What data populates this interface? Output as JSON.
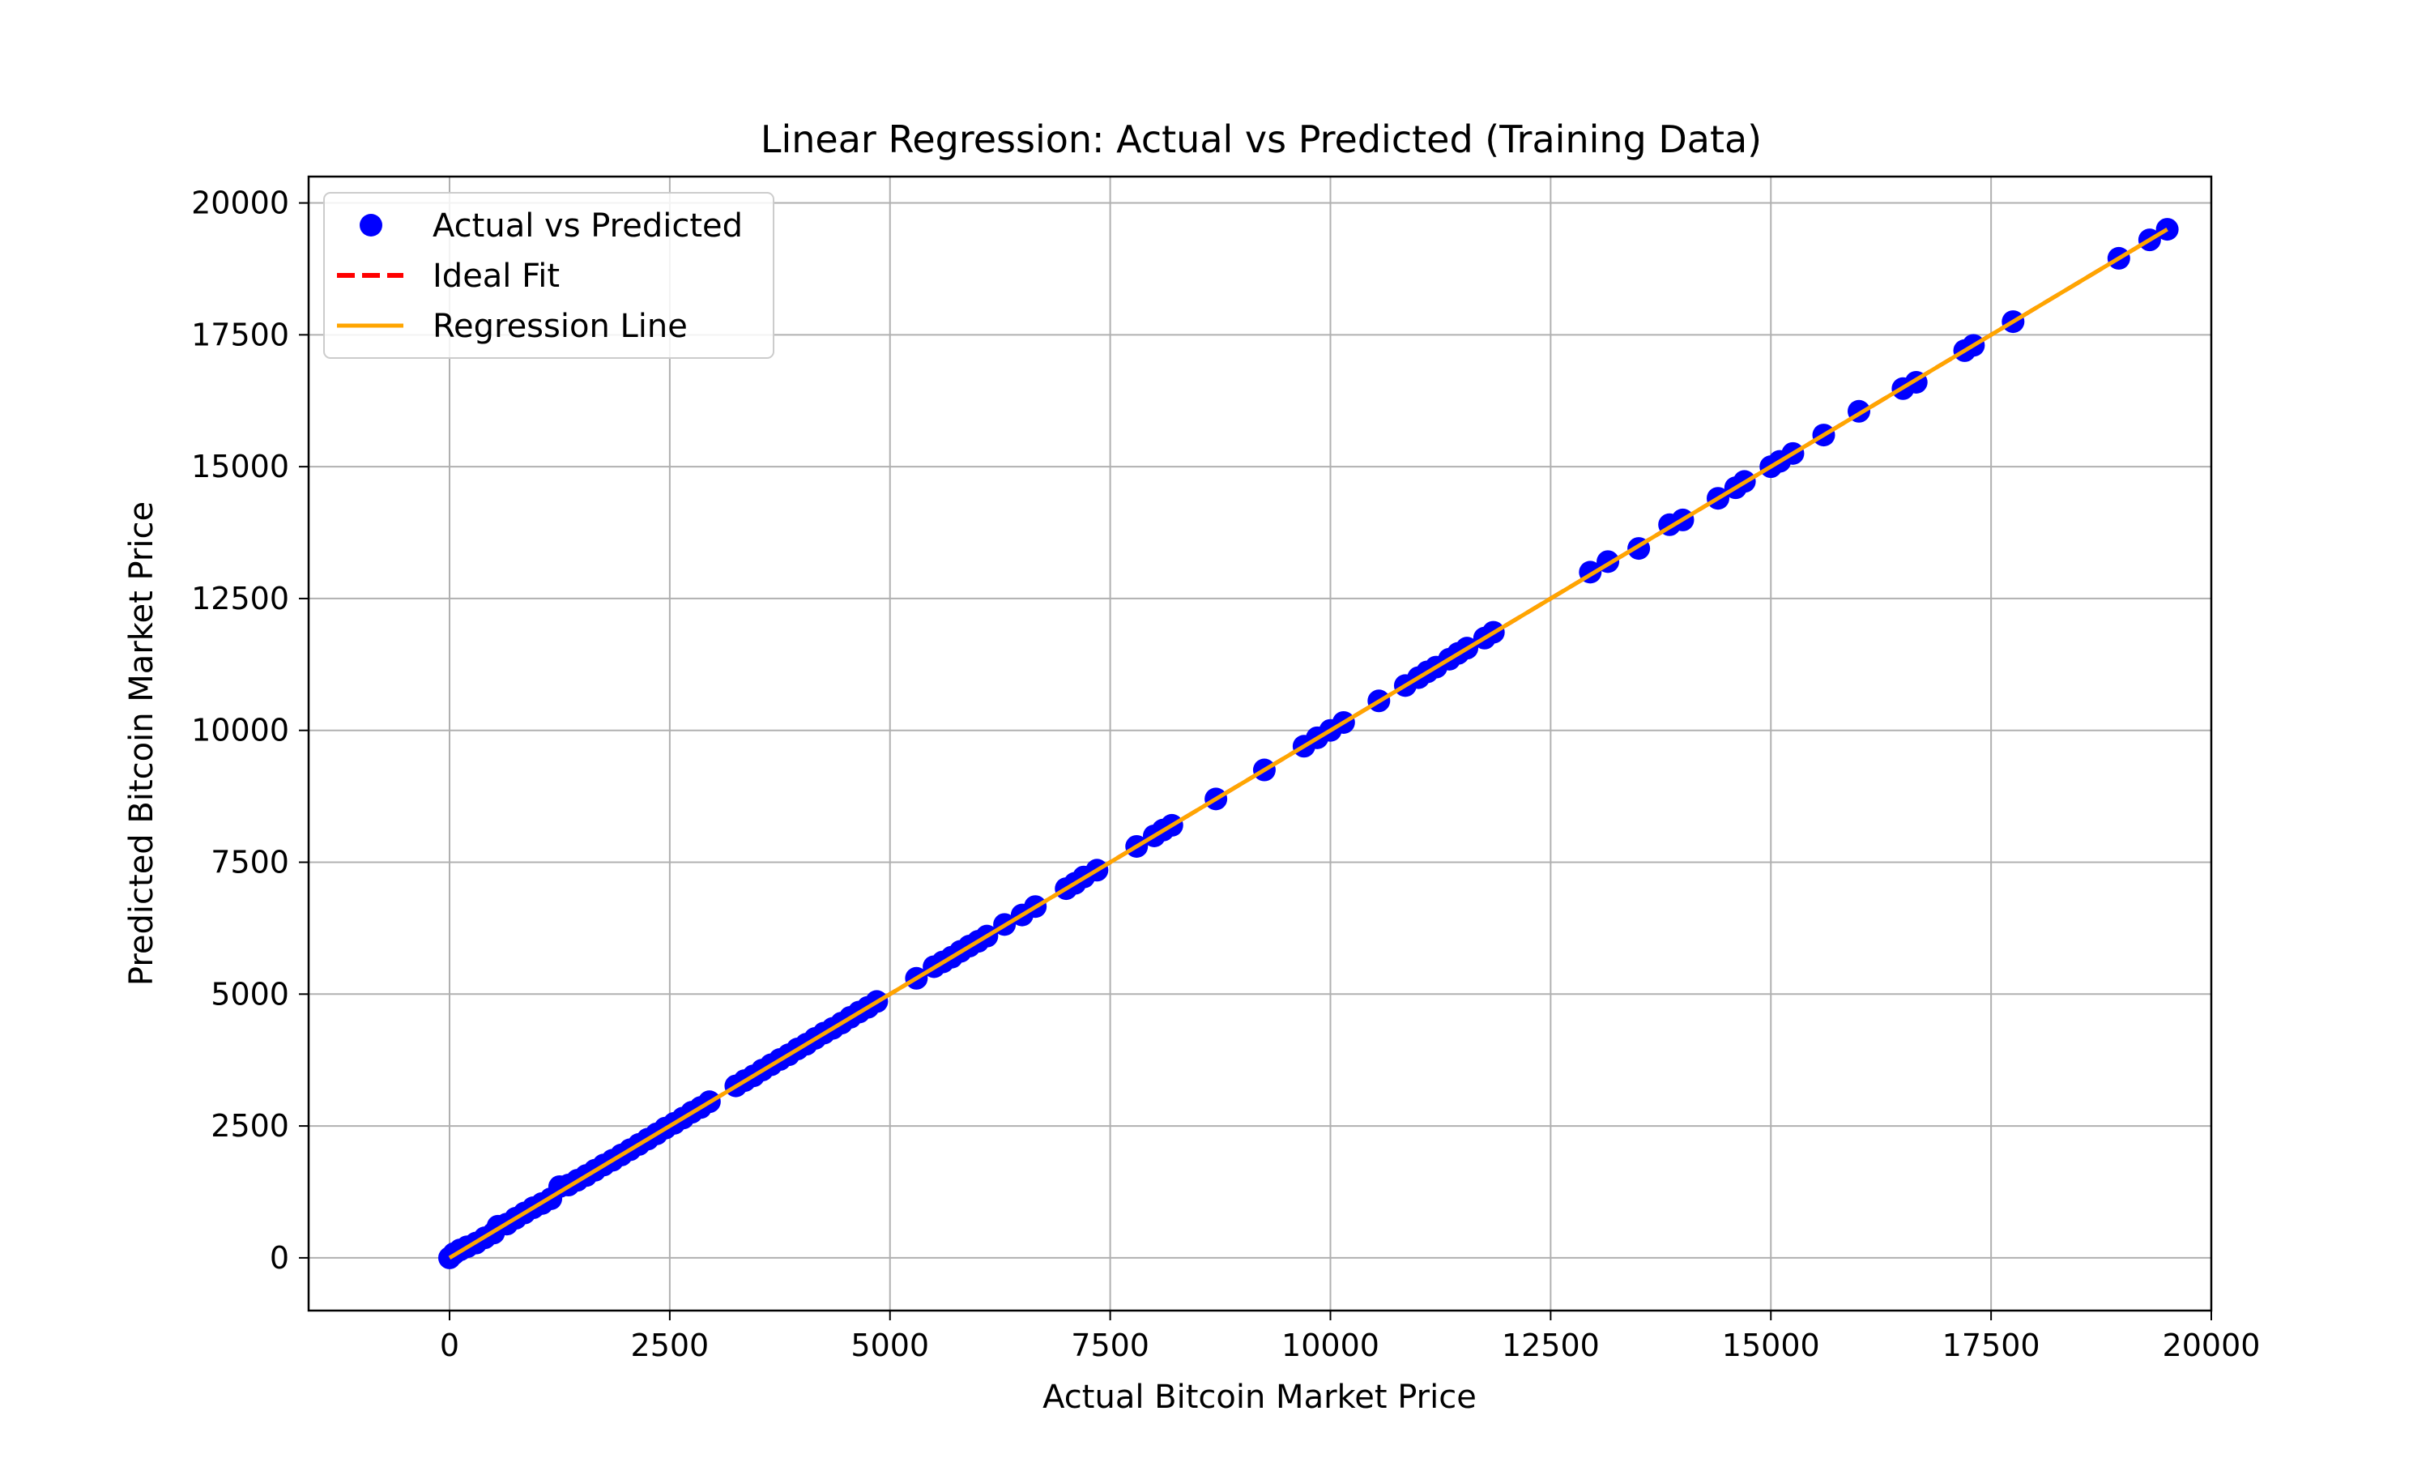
{
  "chart_data": {
    "type": "scatter",
    "title": "Linear Regression: Actual vs Predicted (Training Data)",
    "xlabel": "Actual Bitcoin Market Price",
    "ylabel": "Predicted Bitcoin Market Price",
    "xlim": [
      -1600,
      20000
    ],
    "ylim": [
      -1000,
      20500
    ],
    "xticks": [
      0,
      2500,
      5000,
      7500,
      10000,
      12500,
      15000,
      17500,
      20000
    ],
    "yticks": [
      0,
      2500,
      5000,
      7500,
      10000,
      12500,
      15000,
      17500,
      20000
    ],
    "grid": true,
    "legend_position": "top-left",
    "series": [
      {
        "name": "Actual vs Predicted",
        "kind": "scatter",
        "color": "#0000ff",
        "points": [
          [
            0,
            0
          ],
          [
            50,
            80
          ],
          [
            120,
            150
          ],
          [
            200,
            210
          ],
          [
            300,
            280
          ],
          [
            400,
            380
          ],
          [
            500,
            470
          ],
          [
            550,
            600
          ],
          [
            650,
            640
          ],
          [
            750,
            750
          ],
          [
            850,
            850
          ],
          [
            950,
            950
          ],
          [
            1050,
            1030
          ],
          [
            1150,
            1120
          ],
          [
            1250,
            1350
          ],
          [
            1350,
            1380
          ],
          [
            1450,
            1470
          ],
          [
            1550,
            1560
          ],
          [
            1650,
            1660
          ],
          [
            1750,
            1760
          ],
          [
            1850,
            1850
          ],
          [
            1950,
            1950
          ],
          [
            2050,
            2050
          ],
          [
            2150,
            2150
          ],
          [
            2250,
            2250
          ],
          [
            2350,
            2350
          ],
          [
            2450,
            2460
          ],
          [
            2550,
            2550
          ],
          [
            2650,
            2650
          ],
          [
            2750,
            2760
          ],
          [
            2850,
            2850
          ],
          [
            2950,
            2960
          ],
          [
            3250,
            3260
          ],
          [
            3350,
            3360
          ],
          [
            3450,
            3450
          ],
          [
            3550,
            3560
          ],
          [
            3650,
            3660
          ],
          [
            3750,
            3760
          ],
          [
            3850,
            3850
          ],
          [
            3950,
            3960
          ],
          [
            4050,
            4050
          ],
          [
            4150,
            4160
          ],
          [
            4250,
            4260
          ],
          [
            4350,
            4350
          ],
          [
            4450,
            4450
          ],
          [
            4550,
            4560
          ],
          [
            4650,
            4660
          ],
          [
            4750,
            4750
          ],
          [
            4850,
            4860
          ],
          [
            5300,
            5300
          ],
          [
            5500,
            5520
          ],
          [
            5600,
            5610
          ],
          [
            5700,
            5700
          ],
          [
            5800,
            5810
          ],
          [
            5900,
            5910
          ],
          [
            6000,
            6000
          ],
          [
            6100,
            6100
          ],
          [
            6300,
            6320
          ],
          [
            6500,
            6500
          ],
          [
            6650,
            6660
          ],
          [
            7000,
            7000
          ],
          [
            7100,
            7100
          ],
          [
            7200,
            7220
          ],
          [
            7350,
            7350
          ],
          [
            7800,
            7800
          ],
          [
            8000,
            8000
          ],
          [
            8100,
            8110
          ],
          [
            8200,
            8200
          ],
          [
            8700,
            8700
          ],
          [
            9250,
            9250
          ],
          [
            9700,
            9700
          ],
          [
            9850,
            9860
          ],
          [
            10000,
            10000
          ],
          [
            10150,
            10150
          ],
          [
            10550,
            10560
          ],
          [
            10850,
            10850
          ],
          [
            11000,
            11000
          ],
          [
            11100,
            11110
          ],
          [
            11200,
            11200
          ],
          [
            11350,
            11350
          ],
          [
            11450,
            11460
          ],
          [
            11550,
            11560
          ],
          [
            11750,
            11750
          ],
          [
            11850,
            11860
          ],
          [
            12950,
            13000
          ],
          [
            13150,
            13200
          ],
          [
            13500,
            13450
          ],
          [
            13850,
            13900
          ],
          [
            14000,
            13990
          ],
          [
            14400,
            14400
          ],
          [
            14600,
            14600
          ],
          [
            14700,
            14720
          ],
          [
            15000,
            15000
          ],
          [
            15100,
            15100
          ],
          [
            15250,
            15250
          ],
          [
            15600,
            15600
          ],
          [
            16000,
            16050
          ],
          [
            16500,
            16480
          ],
          [
            16650,
            16600
          ],
          [
            17200,
            17200
          ],
          [
            17300,
            17300
          ],
          [
            17750,
            17750
          ],
          [
            18950,
            18950
          ],
          [
            19300,
            19300
          ],
          [
            19500,
            19500
          ]
        ]
      },
      {
        "name": "Ideal Fit",
        "kind": "line",
        "style": "dashed",
        "color": "#ff0000",
        "x": [
          0,
          19500
        ],
        "y": [
          0,
          19500
        ]
      },
      {
        "name": "Regression Line",
        "kind": "line",
        "style": "solid",
        "color": "#ffa500",
        "x": [
          0,
          19500
        ],
        "y": [
          0,
          19500
        ]
      }
    ]
  }
}
